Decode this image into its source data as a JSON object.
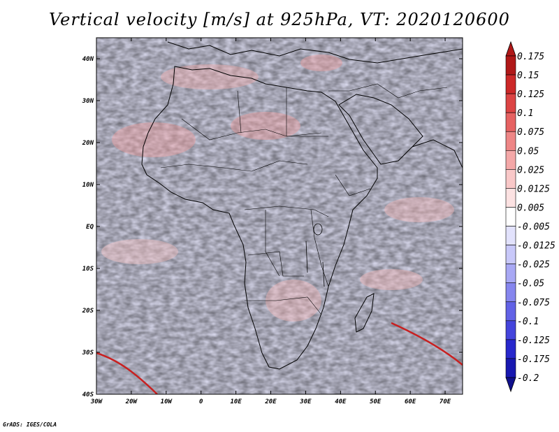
{
  "title": "Vertical velocity [m/s] at 925hPa, VT: 2020120600",
  "credit": "GrADS: IGES/COLA",
  "map": {
    "lon_range": [
      -30,
      75
    ],
    "lat_range": [
      -40,
      45
    ],
    "lat_ticks": [
      {
        "value": 40,
        "label": "40N"
      },
      {
        "value": 30,
        "label": "30N"
      },
      {
        "value": 20,
        "label": "20N"
      },
      {
        "value": 10,
        "label": "10N"
      },
      {
        "value": 0,
        "label": "EQ"
      },
      {
        "value": -10,
        "label": "10S"
      },
      {
        "value": -20,
        "label": "20S"
      },
      {
        "value": -30,
        "label": "30S"
      },
      {
        "value": -40,
        "label": "40S"
      }
    ],
    "lon_ticks": [
      {
        "value": -30,
        "label": "30W"
      },
      {
        "value": -20,
        "label": "20W"
      },
      {
        "value": -10,
        "label": "10W"
      },
      {
        "value": 0,
        "label": "0"
      },
      {
        "value": 10,
        "label": "10E"
      },
      {
        "value": 20,
        "label": "20E"
      },
      {
        "value": 30,
        "label": "30E"
      },
      {
        "value": 40,
        "label": "40E"
      },
      {
        "value": 50,
        "label": "50E"
      },
      {
        "value": 60,
        "label": "60E"
      },
      {
        "value": 70,
        "label": "70E"
      }
    ]
  },
  "colorbar": [
    {
      "label": "0.175",
      "color": "#b01818"
    },
    {
      "label": "0.15",
      "color": "#cc2828"
    },
    {
      "label": "0.125",
      "color": "#dc4444"
    },
    {
      "label": "0.1",
      "color": "#e66262"
    },
    {
      "label": "0.075",
      "color": "#ee8686"
    },
    {
      "label": "0.05",
      "color": "#f4a8a8"
    },
    {
      "label": "0.025",
      "color": "#f9c8c8"
    },
    {
      "label": "0.0125",
      "color": "#fce2e2"
    },
    {
      "label": "0.005",
      "color": "#ffffff"
    },
    {
      "label": "-0.005",
      "color": "#e2e2fc"
    },
    {
      "label": "-0.0125",
      "color": "#c8c8f9"
    },
    {
      "label": "-0.025",
      "color": "#a8a8f4"
    },
    {
      "label": "-0.05",
      "color": "#8686ee"
    },
    {
      "label": "-0.075",
      "color": "#6262e6"
    },
    {
      "label": "-0.1",
      "color": "#4444dc"
    },
    {
      "label": "-0.125",
      "color": "#2828cc"
    },
    {
      "label": "-0.175",
      "color": "#1818b0"
    },
    {
      "label": "-0.2",
      "color": "#10108c"
    }
  ]
}
